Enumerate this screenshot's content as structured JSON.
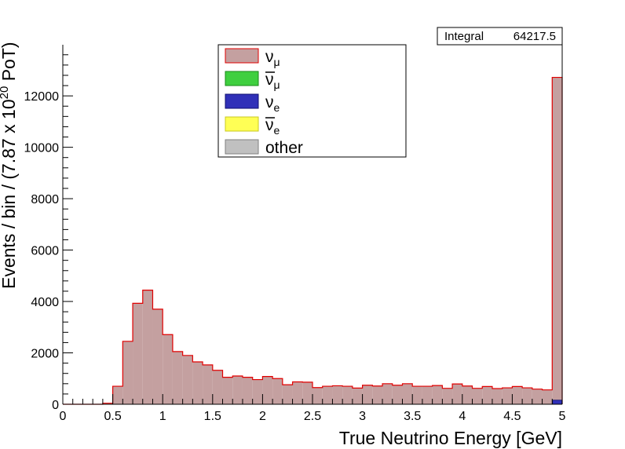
{
  "chart_data": {
    "type": "bar",
    "xlabel": "True Neutrino Energy [GeV]",
    "ylabel": "Events / bin / (7.87 x 10",
    "ylabel_exp": "20",
    "ylabel_tail": " PoT)",
    "xlim": [
      0,
      5
    ],
    "ylim": [
      0,
      13990
    ],
    "x_ticks": [
      0,
      0.5,
      1,
      1.5,
      2,
      2.5,
      3,
      3.5,
      4,
      4.5,
      5
    ],
    "x_tick_labels": [
      "0",
      "0.5",
      "1",
      "1.5",
      "2",
      "2.5",
      "3",
      "3.5",
      "4",
      "4.5",
      "5"
    ],
    "y_ticks": [
      0,
      2000,
      4000,
      6000,
      8000,
      10000,
      12000
    ],
    "y_tick_labels": [
      "0",
      "2000",
      "4000",
      "6000",
      "8000",
      "10000",
      "12000"
    ],
    "bin_width": 0.1,
    "bin_edges_start": 0.0,
    "stats": {
      "label": "Integral",
      "value": "64217.5"
    },
    "legend": {
      "placement": "top-center",
      "entries": [
        {
          "symbol": "ν",
          "sub": "μ",
          "bar": false,
          "fill": "#c4a0a0",
          "border": "#e00000"
        },
        {
          "symbol": "ν",
          "sub": "μ",
          "bar": true,
          "fill": "#3fcf3f",
          "border": "#1a8a1a"
        },
        {
          "symbol": "ν",
          "sub": "e",
          "bar": false,
          "fill": "#3030b8",
          "border": "#101070"
        },
        {
          "symbol": "ν",
          "sub": "e",
          "bar": true,
          "fill": "#ffff55",
          "border": "#c8c820"
        },
        {
          "symbol": "other",
          "sub": "",
          "bar": false,
          "fill": "#c0c0c0",
          "border": "#808080"
        }
      ]
    },
    "series": [
      {
        "values": [
          0,
          0,
          0,
          0,
          40,
          700,
          2450,
          3930,
          4440,
          3700,
          2710,
          2050,
          1900,
          1650,
          1530,
          1320,
          1050,
          1100,
          1050,
          960,
          1080,
          1000,
          760,
          870,
          860,
          650,
          700,
          720,
          700,
          630,
          740,
          710,
          800,
          740,
          800,
          700,
          700,
          730,
          620,
          790,
          710,
          620,
          690,
          610,
          640,
          690,
          640,
          590,
          560,
          12720
        ],
        "fill": "#c4a0a0",
        "edge": "#e00000"
      },
      {
        "values": [
          0,
          0,
          0,
          0,
          0,
          0,
          0,
          0,
          0,
          0,
          0,
          0,
          0,
          0,
          0,
          0,
          0,
          0,
          0,
          0,
          0,
          0,
          0,
          0,
          0,
          0,
          0,
          0,
          0,
          0,
          0,
          0,
          0,
          0,
          0,
          0,
          0,
          0,
          0,
          0,
          0,
          0,
          0,
          0,
          0,
          0,
          0,
          0,
          0,
          160
        ],
        "fill": "#3030b8",
        "edge": "#101070"
      }
    ]
  }
}
